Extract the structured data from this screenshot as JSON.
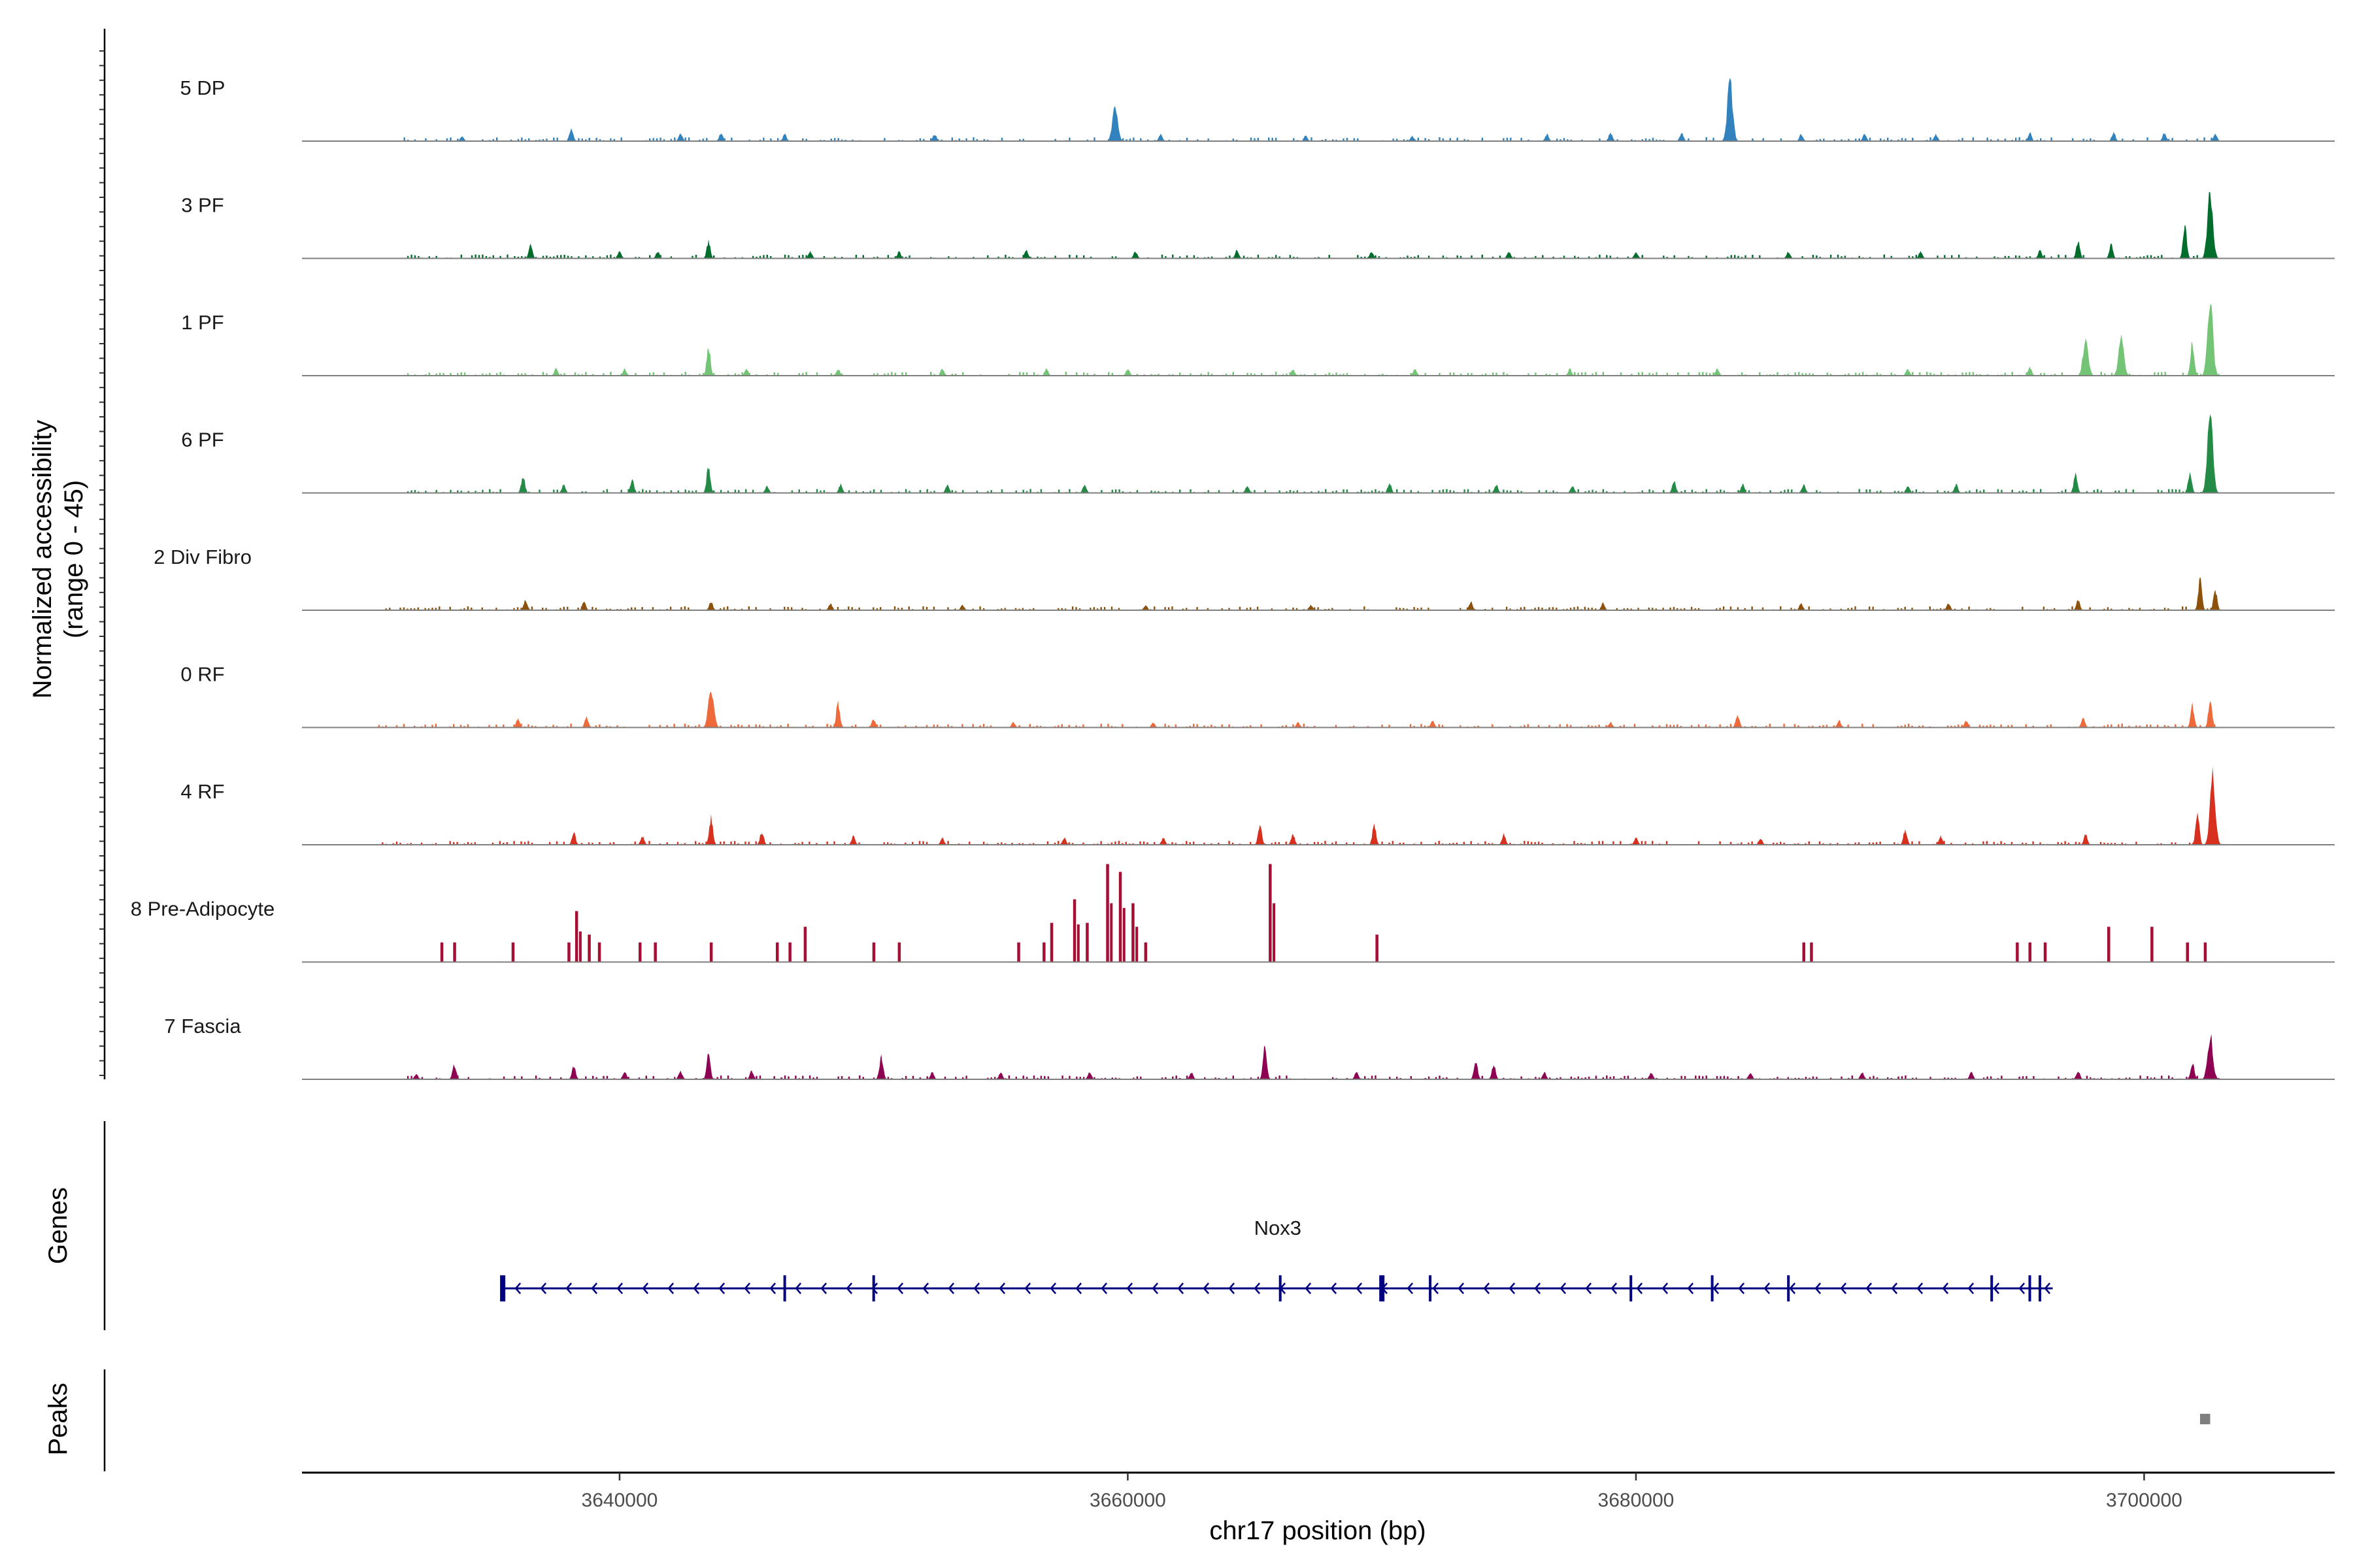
{
  "chart_data": {
    "type": "area",
    "chromosome": "chr17",
    "xlabel": "chr17 position (bp)",
    "ylabel_line1": "Normalized accessibility",
    "ylabel_line2": "(range 0 - 45)",
    "y_range": [
      0,
      45
    ],
    "xlim": [
      3627500,
      3707500
    ],
    "x_ticks": [
      3640000,
      3660000,
      3680000,
      3700000
    ],
    "x_tick_labels": [
      "3640000",
      "3660000",
      "3680000",
      "3700000"
    ],
    "series": [
      {
        "name": "5 DP",
        "color": "#3182bd",
        "peaks": [
          [
            3633800,
            3
          ],
          [
            3638100,
            8
          ],
          [
            3642400,
            5
          ],
          [
            3644000,
            5
          ],
          [
            3646500,
            4
          ],
          [
            3652400,
            4
          ],
          [
            3659500,
            22
          ],
          [
            3661300,
            4
          ],
          [
            3667000,
            3
          ],
          [
            3671200,
            3
          ],
          [
            3676500,
            4
          ],
          [
            3679000,
            5
          ],
          [
            3681800,
            5
          ],
          [
            3683700,
            36
          ],
          [
            3686500,
            4
          ],
          [
            3689000,
            4
          ],
          [
            3691800,
            4
          ],
          [
            3695500,
            5
          ],
          [
            3698800,
            5
          ],
          [
            3700800,
            5
          ],
          [
            3702800,
            4
          ]
        ]
      },
      {
        "name": "3 PF",
        "color": "#006d2c",
        "peaks": [
          [
            3636500,
            8
          ],
          [
            3640000,
            4
          ],
          [
            3641500,
            4
          ],
          [
            3643500,
            10
          ],
          [
            3647500,
            4
          ],
          [
            3651000,
            4
          ],
          [
            3656000,
            5
          ],
          [
            3660300,
            4
          ],
          [
            3664300,
            5
          ],
          [
            3669600,
            4
          ],
          [
            3675000,
            4
          ],
          [
            3680000,
            4
          ],
          [
            3686000,
            4
          ],
          [
            3691200,
            4
          ],
          [
            3695900,
            5
          ],
          [
            3697400,
            10
          ],
          [
            3698700,
            8
          ],
          [
            3701600,
            20
          ],
          [
            3702600,
            40
          ]
        ]
      },
      {
        "name": "1 PF",
        "color": "#74c476",
        "peaks": [
          [
            3637500,
            4
          ],
          [
            3640200,
            4
          ],
          [
            3643500,
            18
          ],
          [
            3645000,
            4
          ],
          [
            3648600,
            4
          ],
          [
            3652700,
            4
          ],
          [
            3656800,
            4
          ],
          [
            3660000,
            4
          ],
          [
            3666500,
            4
          ],
          [
            3671300,
            4
          ],
          [
            3677400,
            4
          ],
          [
            3683200,
            4
          ],
          [
            3690700,
            4
          ],
          [
            3695500,
            5
          ],
          [
            3697700,
            22
          ],
          [
            3699100,
            22
          ],
          [
            3701900,
            20
          ],
          [
            3702600,
            45
          ]
        ]
      },
      {
        "name": "6 PF",
        "color": "#238b45",
        "peaks": [
          [
            3636200,
            10
          ],
          [
            3637800,
            5
          ],
          [
            3640500,
            8
          ],
          [
            3643500,
            16
          ],
          [
            3645800,
            4
          ],
          [
            3648700,
            5
          ],
          [
            3652900,
            5
          ],
          [
            3658300,
            5
          ],
          [
            3664700,
            4
          ],
          [
            3670300,
            6
          ],
          [
            3674500,
            5
          ],
          [
            3677500,
            4
          ],
          [
            3681500,
            7
          ],
          [
            3684200,
            5
          ],
          [
            3686600,
            5
          ],
          [
            3690700,
            4
          ],
          [
            3692600,
            5
          ],
          [
            3697300,
            11
          ],
          [
            3701800,
            12
          ],
          [
            3702600,
            48
          ]
        ]
      },
      {
        "name": "2 Div Fibro",
        "color": "#8c510a",
        "peaks": [
          [
            3636300,
            6
          ],
          [
            3638600,
            5
          ],
          [
            3643600,
            5
          ],
          [
            3648300,
            4
          ],
          [
            3653500,
            3
          ],
          [
            3660700,
            3
          ],
          [
            3667200,
            3
          ],
          [
            3673500,
            5
          ],
          [
            3678700,
            4
          ],
          [
            3686500,
            4
          ],
          [
            3692300,
            4
          ],
          [
            3697400,
            6
          ],
          [
            3702200,
            18
          ],
          [
            3702800,
            12
          ]
        ]
      },
      {
        "name": "0 RF",
        "color": "#ee6a3a",
        "peaks": [
          [
            3636000,
            5
          ],
          [
            3638700,
            6
          ],
          [
            3643600,
            24
          ],
          [
            3648600,
            15
          ],
          [
            3650000,
            5
          ],
          [
            3655500,
            3
          ],
          [
            3661000,
            3
          ],
          [
            3666700,
            3
          ],
          [
            3672000,
            4
          ],
          [
            3679000,
            3
          ],
          [
            3684000,
            8
          ],
          [
            3688000,
            4
          ],
          [
            3693000,
            4
          ],
          [
            3697600,
            6
          ],
          [
            3701900,
            13
          ],
          [
            3702600,
            17
          ]
        ]
      },
      {
        "name": "4 RF",
        "color": "#d7301f",
        "peaks": [
          [
            3638200,
            7
          ],
          [
            3640900,
            5
          ],
          [
            3643600,
            16
          ],
          [
            3645600,
            8
          ],
          [
            3649200,
            5
          ],
          [
            3652700,
            4
          ],
          [
            3657500,
            4
          ],
          [
            3661400,
            4
          ],
          [
            3665200,
            12
          ],
          [
            3666500,
            6
          ],
          [
            3669700,
            12
          ],
          [
            3674800,
            6
          ],
          [
            3680000,
            4
          ],
          [
            3684900,
            4
          ],
          [
            3690600,
            9
          ],
          [
            3692000,
            5
          ],
          [
            3697700,
            6
          ],
          [
            3702100,
            18
          ],
          [
            3702700,
            40
          ]
        ]
      },
      {
        "name": "8 Pre-Adipocyte",
        "color": "#a50f35",
        "style": "spike",
        "peaks": [
          [
            3633000,
            10
          ],
          [
            3633500,
            10
          ],
          [
            3635800,
            10
          ],
          [
            3638000,
            10
          ],
          [
            3638300,
            26
          ],
          [
            3638800,
            14
          ],
          [
            3639200,
            10
          ],
          [
            3640800,
            10
          ],
          [
            3641400,
            10
          ],
          [
            3643600,
            10
          ],
          [
            3646200,
            10
          ],
          [
            3646700,
            10
          ],
          [
            3647300,
            18
          ],
          [
            3650000,
            10
          ],
          [
            3651000,
            10
          ],
          [
            3655700,
            10
          ],
          [
            3656700,
            10
          ],
          [
            3657000,
            20
          ],
          [
            3657900,
            32
          ],
          [
            3658400,
            20
          ],
          [
            3659200,
            50
          ],
          [
            3659700,
            46
          ],
          [
            3660200,
            30
          ],
          [
            3660700,
            10
          ],
          [
            3665600,
            52
          ],
          [
            3669800,
            14
          ],
          [
            3686600,
            10
          ],
          [
            3686900,
            10
          ],
          [
            3695000,
            10
          ],
          [
            3695500,
            10
          ],
          [
            3696100,
            10
          ],
          [
            3698600,
            18
          ],
          [
            3700300,
            18
          ],
          [
            3701700,
            10
          ],
          [
            3702400,
            10
          ]
        ]
      },
      {
        "name": "7 Fascia",
        "color": "#8e0152",
        "peaks": [
          [
            3632000,
            3
          ],
          [
            3633500,
            9
          ],
          [
            3638200,
            8
          ],
          [
            3640200,
            5
          ],
          [
            3642400,
            5
          ],
          [
            3643500,
            16
          ],
          [
            3645200,
            5
          ],
          [
            3650300,
            14
          ],
          [
            3652300,
            4
          ],
          [
            3655000,
            4
          ],
          [
            3658500,
            4
          ],
          [
            3662500,
            4
          ],
          [
            3665400,
            20
          ],
          [
            3669000,
            4
          ],
          [
            3673700,
            11
          ],
          [
            3674400,
            9
          ],
          [
            3676400,
            4
          ],
          [
            3680600,
            4
          ],
          [
            3684500,
            4
          ],
          [
            3688900,
            4
          ],
          [
            3693200,
            4
          ],
          [
            3697400,
            5
          ],
          [
            3701900,
            10
          ],
          [
            3702600,
            26
          ]
        ]
      }
    ],
    "genes": [
      {
        "name": "Nox3",
        "start": 3635400,
        "end": 3696400,
        "strand": "-",
        "exons": [
          3635400,
          3646500,
          3650000,
          3666000,
          3670000,
          3671900,
          3679800,
          3683000,
          3686000,
          3694000,
          3695500,
          3695900
        ]
      }
    ],
    "peaks_track": [
      [
        3702200,
        3702600
      ]
    ],
    "tracks_labels": {
      "genes": "Genes",
      "peaks": "Peaks"
    }
  }
}
